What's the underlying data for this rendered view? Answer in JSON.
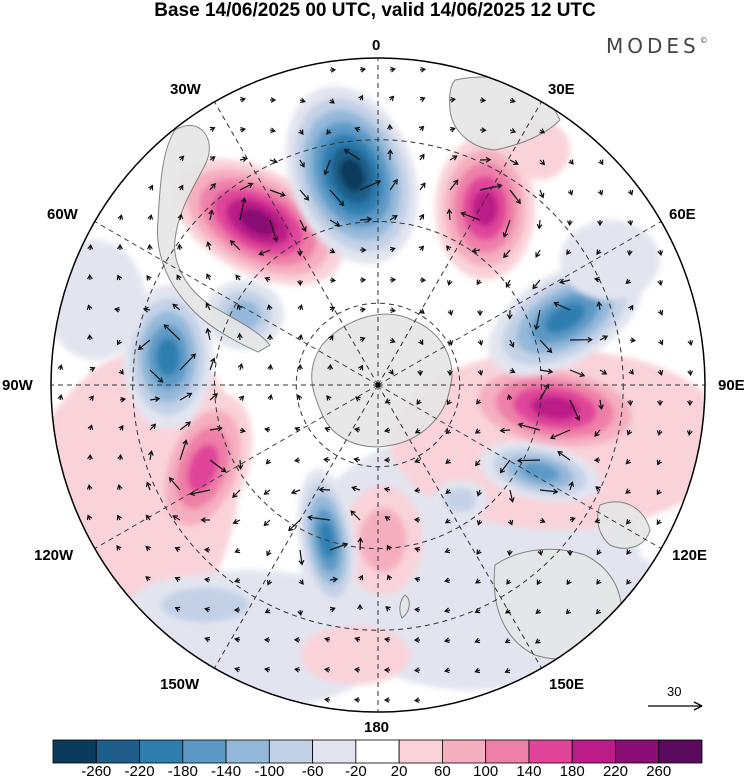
{
  "title": "Base 14/06/2025 00 UTC, valid 14/06/2025 12 UTC",
  "brand": "MODES",
  "brand_mark": "©",
  "longitude_labels": {
    "deg0": "0",
    "e30": "30E",
    "e60": "60E",
    "e90": "90E",
    "e120": "120E",
    "e150": "150E",
    "deg180": "180",
    "w150": "150W",
    "w120": "120W",
    "w90": "90W",
    "w60": "60W",
    "w30": "30W"
  },
  "reference_vector": "30",
  "colorbar": {
    "labels": [
      "-260",
      "-220",
      "-180",
      "-140",
      "-100",
      "-60",
      "-20",
      "20",
      "60",
      "100",
      "140",
      "180",
      "220",
      "260"
    ],
    "colors": [
      "#0b3b5c",
      "#1d5e8a",
      "#2f7eb0",
      "#5b9ac6",
      "#93b8d9",
      "#c3d1e6",
      "#e2e5f0",
      "#ffffff",
      "#f9d3d9",
      "#f5aec0",
      "#ee7fa8",
      "#e0459a",
      "#bc1c88",
      "#8a0e73",
      "#5b0a5e"
    ]
  },
  "colors": {
    "land": "#e6e6e6",
    "coast": "#777777",
    "grid": "#333333"
  }
}
